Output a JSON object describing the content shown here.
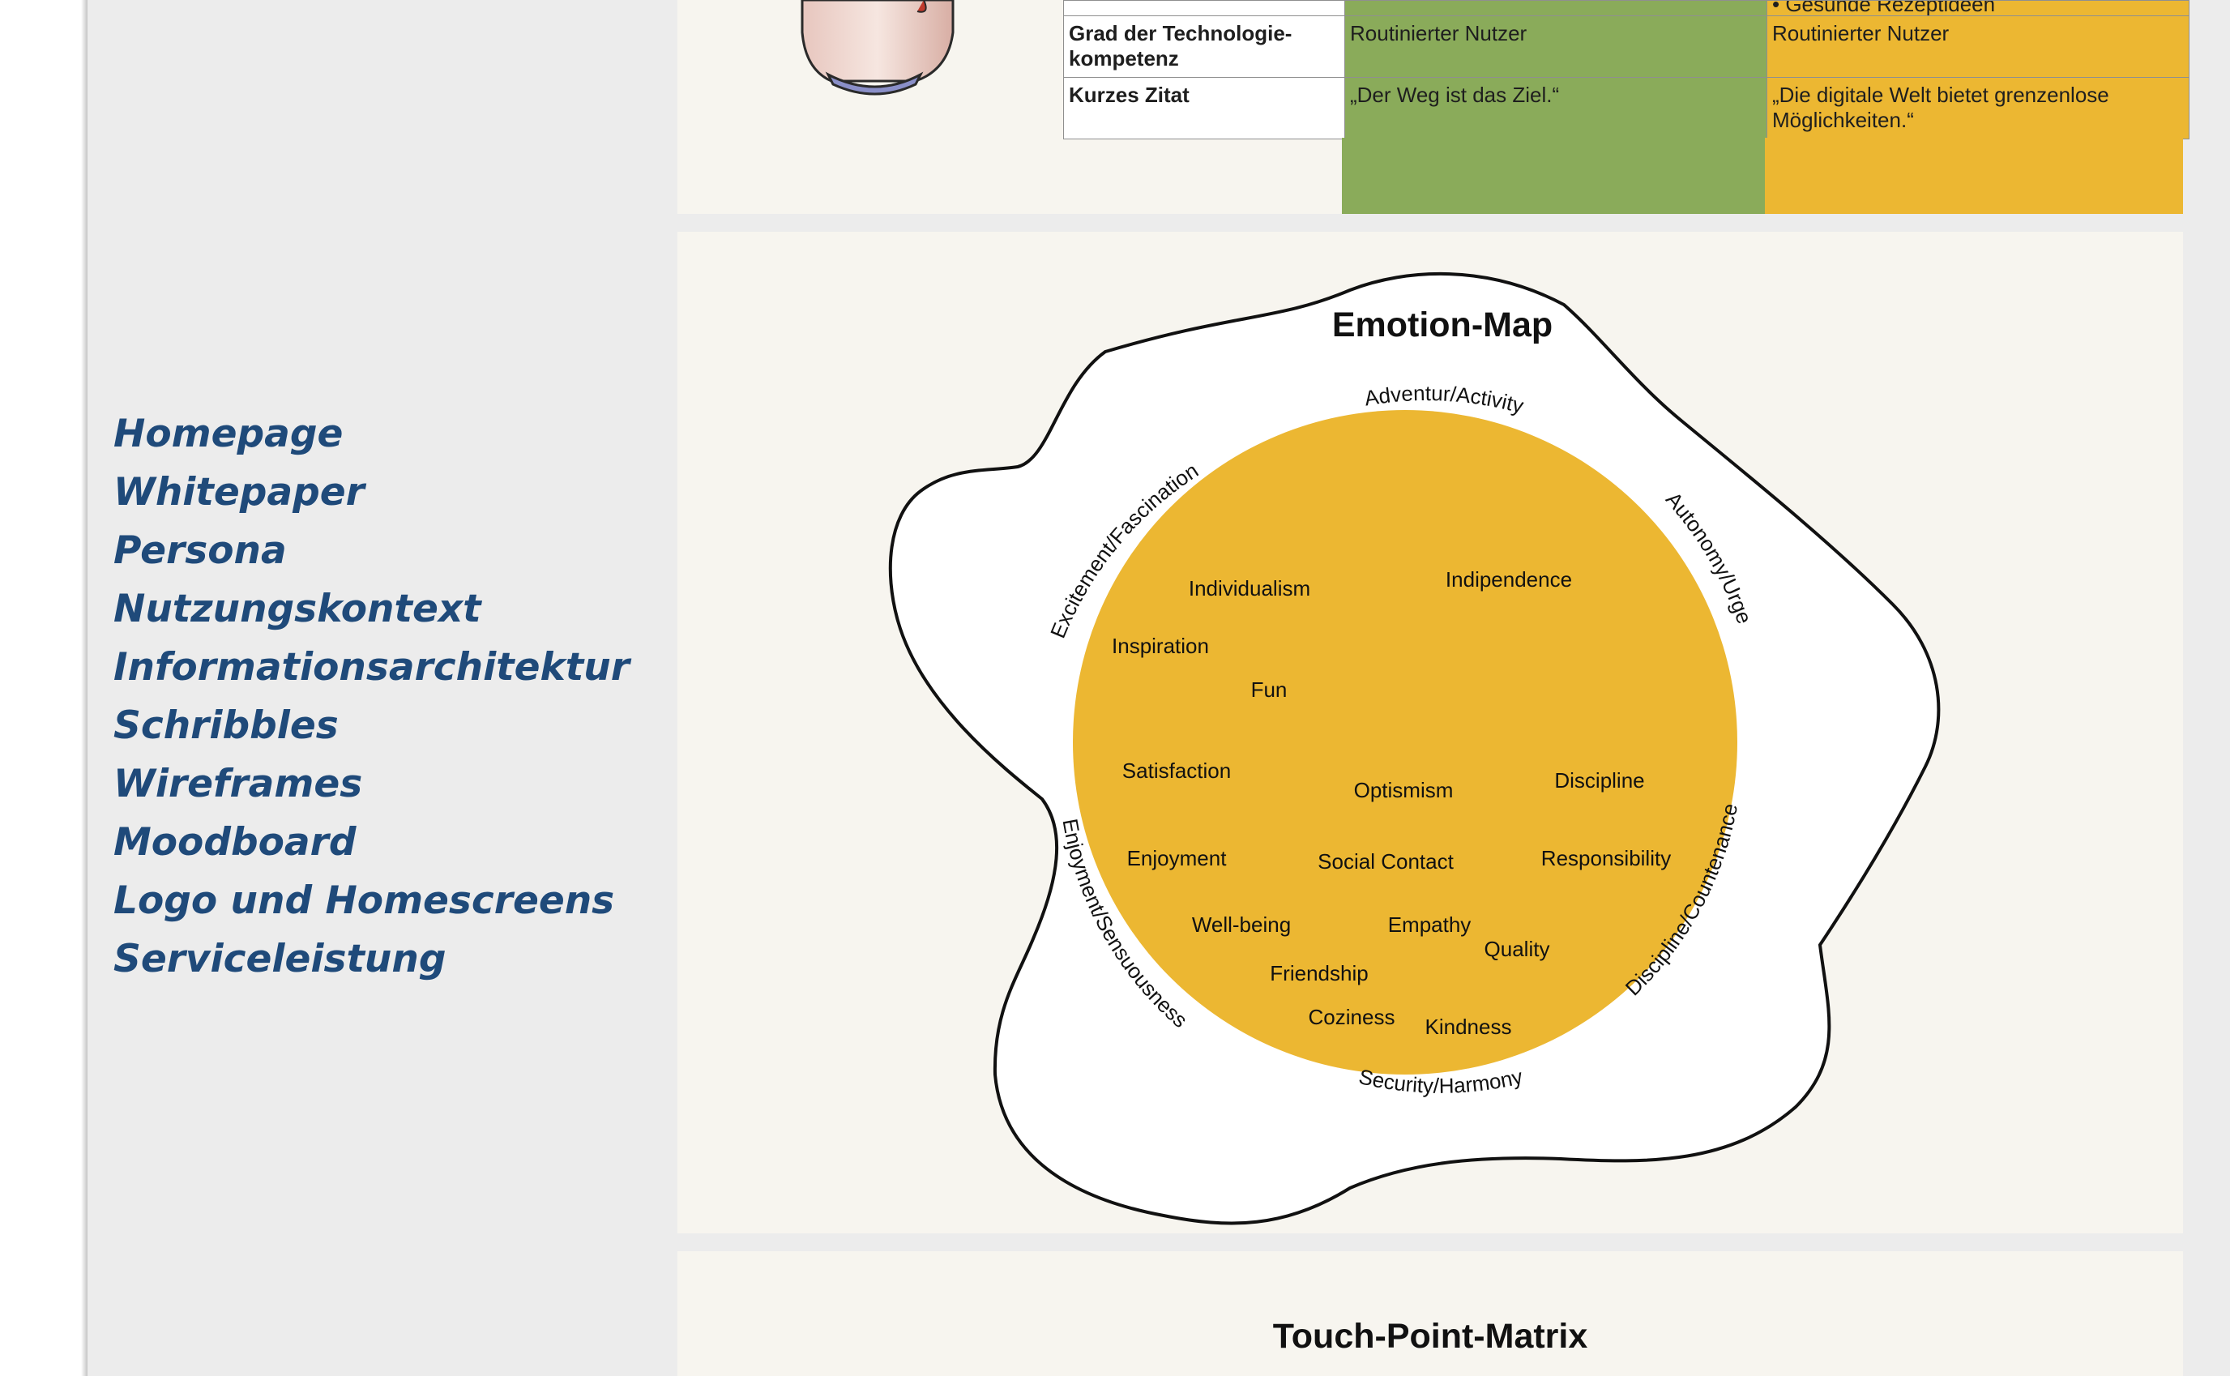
{
  "sidebar": {
    "nav": [
      {
        "label": "Homepage"
      },
      {
        "label": "Whitepaper"
      },
      {
        "label": "Persona"
      },
      {
        "label": "Nutzungskontext"
      },
      {
        "label": "Informationsarchitektur"
      },
      {
        "label": "Schribbles"
      },
      {
        "label": "Wireframes"
      },
      {
        "label": "Moodboard"
      },
      {
        "label": "Logo und Homescreens"
      },
      {
        "label": "Serviceleistung"
      }
    ]
  },
  "persona_table": {
    "cut_row": {
      "persona1": "",
      "persona2": "• Gesunde Rezeptideen"
    },
    "rows": [
      {
        "label": "Grad der Technologie-kompetenz",
        "persona1": "Routinierter Nutzer",
        "persona2": "Routinierter Nutzer"
      },
      {
        "label": "Kurzes Zitat",
        "persona1": "„Der Weg ist das Ziel.“",
        "persona2": "„Die digitale Welt bietet grenzenlose Möglichkeiten.“"
      }
    ],
    "colors": {
      "persona1": "#8aab5a",
      "persona2": "#ecb732"
    }
  },
  "emotion_map": {
    "title": "Emotion-Map",
    "circle_color": "#ecb732",
    "categories": [
      "Adventur/Activity",
      "Autonomy/Urge",
      "Discipline/Countenance",
      "Security/Harmony",
      "Enjoyment/Sensuousness",
      "Excitement/Fascination"
    ],
    "emotions": [
      "Individualism",
      "Indipendence",
      "Inspiration",
      "Fun",
      "Satisfaction",
      "Optismism",
      "Discipline",
      "Enjoyment",
      "Social Contact",
      "Responsibility",
      "Well-being",
      "Empathy",
      "Quality",
      "Friendship",
      "Coziness",
      "Kindness"
    ]
  },
  "touch_point": {
    "title": "Touch-Point-Matrix"
  }
}
